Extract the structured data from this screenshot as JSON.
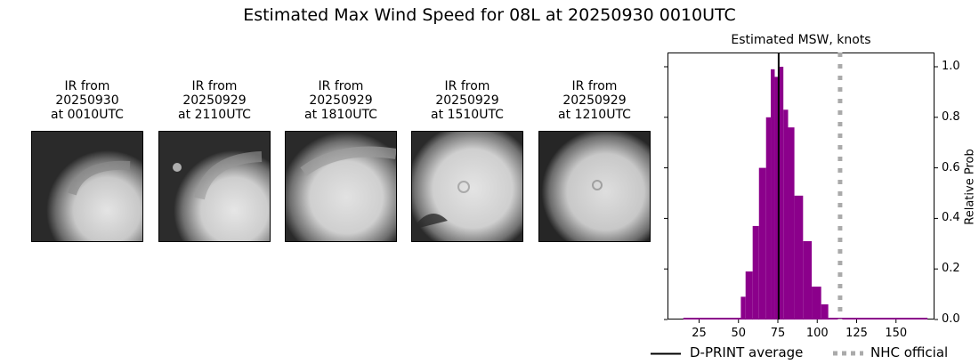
{
  "figure": {
    "suptitle": "Estimated Max Wind Speed for 08L at 20250930 0010UTC"
  },
  "ir_panels": [
    {
      "line1": "IR from",
      "line2": "20250930",
      "line3": "at 0010UTC"
    },
    {
      "line1": "IR from",
      "line2": "20250929",
      "line3": "at 2110UTC"
    },
    {
      "line1": "IR from",
      "line2": "20250929",
      "line3": "at 1810UTC"
    },
    {
      "line1": "IR from",
      "line2": "20250929",
      "line3": "at 1510UTC"
    },
    {
      "line1": "IR from",
      "line2": "20250929",
      "line3": "at 1210UTC"
    }
  ],
  "chart_data": {
    "type": "bar",
    "title": "Estimated MSW, knots",
    "xlabel": "",
    "ylabel": "Relative Prob",
    "xlim": [
      5,
      175
    ],
    "ylim": [
      0,
      1.05
    ],
    "xticks": [
      25,
      50,
      75,
      100,
      125,
      150
    ],
    "xtick_labels": [
      "25",
      "50",
      "75",
      "100",
      "125",
      "150"
    ],
    "yticks": [
      0.0,
      0.2,
      0.4,
      0.6,
      0.8,
      1.0
    ],
    "ytick_labels": [
      "0.0",
      "0.2",
      "0.4",
      "0.6",
      "0.8",
      "1.0"
    ],
    "y_axis_position": "right",
    "grid": false,
    "bar_color": "#8b008b",
    "bins": [
      {
        "x0": 15,
        "x1": 51.5,
        "value": 0.007
      },
      {
        "x0": 51.5,
        "x1": 54.5,
        "value": 0.09
      },
      {
        "x0": 54.5,
        "x1": 59,
        "value": 0.19
      },
      {
        "x0": 59,
        "x1": 63,
        "value": 0.37
      },
      {
        "x0": 63,
        "x1": 67.5,
        "value": 0.6
      },
      {
        "x0": 67.5,
        "x1": 70.5,
        "value": 0.8
      },
      {
        "x0": 70.5,
        "x1": 73,
        "value": 0.99
      },
      {
        "x0": 73,
        "x1": 76,
        "value": 0.96
      },
      {
        "x0": 76,
        "x1": 78.5,
        "value": 1.0
      },
      {
        "x0": 78.5,
        "x1": 81.5,
        "value": 0.83
      },
      {
        "x0": 81.5,
        "x1": 85.5,
        "value": 0.76
      },
      {
        "x0": 85.5,
        "x1": 91,
        "value": 0.49
      },
      {
        "x0": 91,
        "x1": 96.5,
        "value": 0.31
      },
      {
        "x0": 96.5,
        "x1": 102.5,
        "value": 0.13
      },
      {
        "x0": 102.5,
        "x1": 107,
        "value": 0.06
      },
      {
        "x0": 107,
        "x1": 170,
        "value": 0.007
      }
    ],
    "reference_lines": [
      {
        "name": "D-PRINT average",
        "x": 75.5,
        "style": "solid",
        "color": "#000000"
      },
      {
        "name": "NHC official",
        "x": 114.5,
        "style": "dotted",
        "color": "#aaaaaa"
      }
    ],
    "legend": {
      "position": "bottom",
      "entries": [
        "D-PRINT average",
        "NHC official"
      ]
    }
  }
}
